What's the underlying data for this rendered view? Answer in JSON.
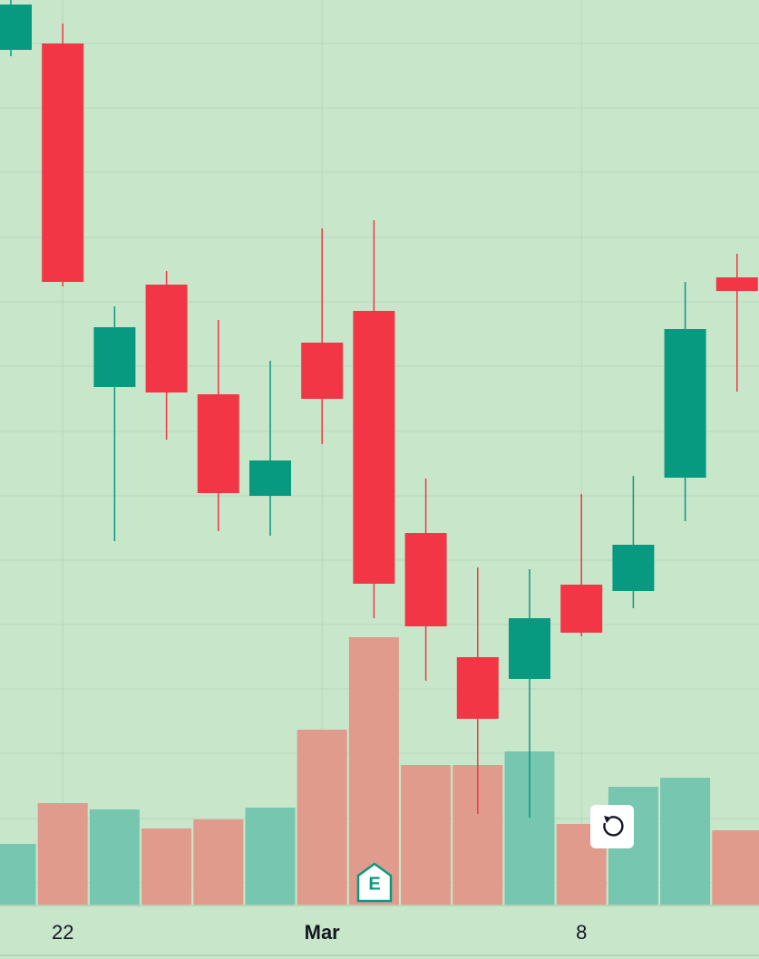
{
  "chart_data": {
    "type": "candlestick",
    "categories": [
      null,
      "22",
      null,
      null,
      null,
      null,
      "Mar",
      null,
      null,
      null,
      null,
      "8",
      null,
      null,
      null
    ],
    "open": [
      945,
      952,
      573,
      686,
      565,
      453,
      622,
      657,
      412,
      275,
      251,
      355,
      348,
      473,
      694
    ],
    "high": [
      1000,
      974,
      662,
      701,
      647,
      602,
      748,
      757,
      472,
      374,
      372,
      455,
      475,
      689,
      720
    ],
    "low": [
      938,
      684,
      403,
      515,
      414,
      409,
      510,
      318,
      249,
      102,
      98,
      298,
      329,
      425,
      568
    ],
    "close": [
      995,
      689,
      639,
      567,
      456,
      492,
      560,
      356,
      309,
      207,
      318,
      302,
      399,
      637,
      679
    ],
    "volume": [
      67,
      112,
      105,
      84,
      94,
      107,
      193,
      295,
      154,
      154,
      169,
      89,
      130,
      140,
      82
    ],
    "ylim": [
      2,
      1000
    ],
    "vlim": [
      0,
      998
    ],
    "yticks": [
      952,
      881,
      810,
      738,
      667,
      596,
      524,
      453,
      382,
      311,
      240,
      169,
      97,
      26
    ],
    "up_color": "#089981",
    "down_color": "#f23645",
    "up_volume_color": "#76c6b0",
    "down_volume_color": "#e09b8d",
    "grid": true,
    "earnings_marker": "E"
  }
}
